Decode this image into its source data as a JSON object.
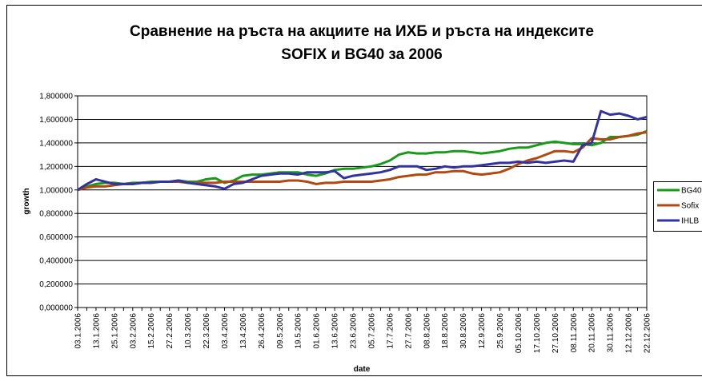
{
  "chart_data": {
    "type": "line",
    "title": "Сравнение на ръста на акциите на ИХБ и ръста на индексите",
    "subtitle": "SOFIX и BG40 за 2006",
    "x_label": "date",
    "y_label": "growth",
    "categories": [
      "03.1.2006",
      null,
      "13.1.2006",
      null,
      "25.1.2006",
      null,
      "03.2.2006",
      null,
      "15.2.2006",
      null,
      "27.2.2006",
      null,
      "10.3.2006",
      null,
      "22.3.2006",
      null,
      "03.4.2006",
      null,
      "13.4.2006",
      null,
      "26.4.2006",
      null,
      "09.5.2006",
      null,
      "19.5.2006",
      null,
      "01.6.2006",
      null,
      "13.6.2006",
      null,
      "23.6.2006",
      null,
      "05.7.2006",
      null,
      "17.7.2006",
      null,
      "27.7.2006",
      null,
      "08.8.2006",
      null,
      "18.8.2006",
      null,
      "30.8.2006",
      null,
      "12.9.2006",
      null,
      "25.9.2006",
      null,
      "05.10.2006",
      null,
      "17.10.2006",
      null,
      "27.10.2006",
      null,
      "08.11.2006",
      null,
      "20.11.2006",
      null,
      "30.11.2006",
      null,
      "12.12.2006",
      null,
      "22.12.2006"
    ],
    "series": [
      {
        "name": "BG40",
        "color": "#1a9a1a",
        "values": [
          1.0,
          1.03,
          1.05,
          1.06,
          1.06,
          1.05,
          1.06,
          1.06,
          1.07,
          1.07,
          1.07,
          1.08,
          1.07,
          1.07,
          1.09,
          1.1,
          1.06,
          1.08,
          1.12,
          1.13,
          1.13,
          1.14,
          1.15,
          1.15,
          1.15,
          1.13,
          1.12,
          1.14,
          1.17,
          1.18,
          1.18,
          1.19,
          1.2,
          1.22,
          1.25,
          1.3,
          1.32,
          1.31,
          1.31,
          1.32,
          1.32,
          1.33,
          1.33,
          1.32,
          1.31,
          1.32,
          1.33,
          1.35,
          1.36,
          1.36,
          1.38,
          1.4,
          1.41,
          1.4,
          1.39,
          1.39,
          1.38,
          1.4,
          1.45,
          1.45,
          1.46,
          1.47,
          1.5
        ]
      },
      {
        "name": "Sofix",
        "color": "#b04a10",
        "values": [
          1.0,
          1.02,
          1.03,
          1.03,
          1.04,
          1.05,
          1.05,
          1.06,
          1.06,
          1.07,
          1.07,
          1.07,
          1.06,
          1.06,
          1.06,
          1.06,
          1.07,
          1.07,
          1.07,
          1.07,
          1.07,
          1.07,
          1.07,
          1.08,
          1.08,
          1.07,
          1.05,
          1.06,
          1.06,
          1.07,
          1.07,
          1.07,
          1.07,
          1.08,
          1.09,
          1.11,
          1.12,
          1.13,
          1.13,
          1.15,
          1.15,
          1.16,
          1.16,
          1.14,
          1.13,
          1.14,
          1.15,
          1.18,
          1.22,
          1.25,
          1.27,
          1.3,
          1.33,
          1.33,
          1.32,
          1.36,
          1.44,
          1.43,
          1.43,
          1.45,
          1.46,
          1.48,
          1.49
        ]
      },
      {
        "name": "IHLB",
        "color": "#3333a0",
        "values": [
          1.0,
          1.05,
          1.09,
          1.07,
          1.05,
          1.05,
          1.05,
          1.06,
          1.06,
          1.07,
          1.07,
          1.08,
          1.06,
          1.05,
          1.04,
          1.03,
          1.01,
          1.05,
          1.06,
          1.09,
          1.12,
          1.13,
          1.14,
          1.14,
          1.13,
          1.15,
          1.15,
          1.15,
          1.16,
          1.1,
          1.12,
          1.13,
          1.14,
          1.15,
          1.17,
          1.2,
          1.2,
          1.2,
          1.17,
          1.18,
          1.2,
          1.19,
          1.2,
          1.2,
          1.21,
          1.22,
          1.23,
          1.23,
          1.24,
          1.23,
          1.24,
          1.23,
          1.24,
          1.25,
          1.24,
          1.38,
          1.4,
          1.67,
          1.64,
          1.65,
          1.63,
          1.6,
          1.62
        ]
      }
    ],
    "ylim": [
      0,
      1.8
    ],
    "yticks": [
      {
        "value": 0,
        "label": "0,000000"
      },
      {
        "value": 0.2,
        "label": "0,200000"
      },
      {
        "value": 0.4,
        "label": "0,400000"
      },
      {
        "value": 0.6,
        "label": "0,600000"
      },
      {
        "value": 0.8,
        "label": "0,800000"
      },
      {
        "value": 1,
        "label": "1,000000"
      },
      {
        "value": 1.2,
        "label": "1,200000"
      },
      {
        "value": 1.4,
        "label": "1,400000"
      },
      {
        "value": 1.6,
        "label": "1,600000"
      },
      {
        "value": 1.8,
        "label": "1,800000"
      }
    ],
    "grid": true,
    "legend": "right"
  }
}
